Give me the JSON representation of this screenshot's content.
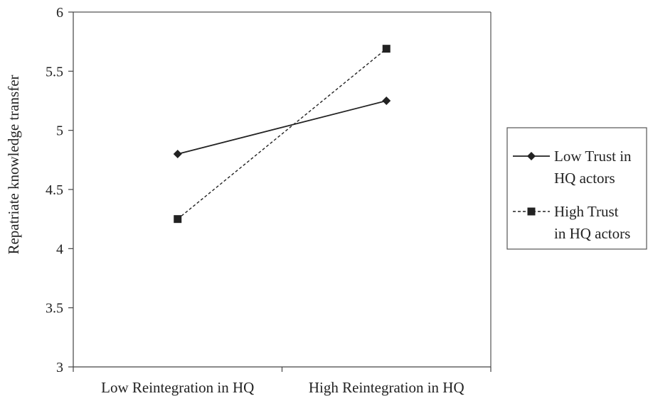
{
  "chart_data": {
    "type": "line",
    "title": "",
    "xlabel": "",
    "ylabel": "Repatriate knowledge transfer",
    "categories": [
      "Low Reintegration in HQ",
      "High Reintegration in HQ"
    ],
    "ylim": [
      3,
      6
    ],
    "yticks": [
      "3",
      "3.5",
      "4",
      "4.5",
      "5",
      "5.5",
      "6"
    ],
    "grid": false,
    "legend_position": "right",
    "series": [
      {
        "name_lines": [
          "Low Trust in",
          "HQ actors"
        ],
        "values": [
          4.8,
          5.25
        ],
        "marker": "diamond",
        "line_style": "solid",
        "color": "#222222"
      },
      {
        "name_lines": [
          "High Trust",
          "in HQ actors"
        ],
        "values": [
          4.25,
          5.69
        ],
        "marker": "square",
        "line_style": "dashed",
        "color": "#222222"
      }
    ]
  }
}
